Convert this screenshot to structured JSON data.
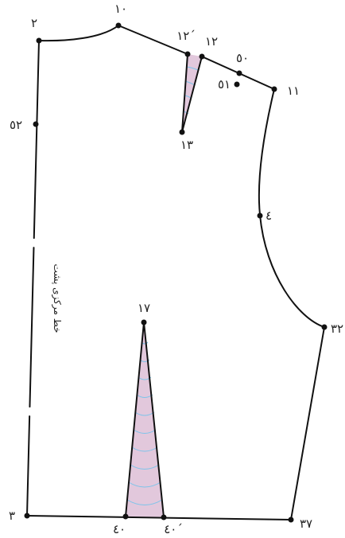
{
  "diagram": {
    "points": {
      "p2": "٢",
      "p10": "١٠",
      "p12p": "١٢´",
      "p12": "١٢",
      "p50": "٥٠",
      "p51": "٥١",
      "p11": "١١",
      "p52": "٥٢",
      "p13": "١٣",
      "p4": "٤",
      "p17": "١٧",
      "p32": "٣٢",
      "p3": "٣",
      "p40": "٤٠",
      "p40p": "٤٠´",
      "p37": "٣٧"
    },
    "center_back_label": "خط مرکزی پشت",
    "colors": {
      "outline": "#111111",
      "dart_fill": "#e2c8dc",
      "dart_lines": "#7cc4ea"
    }
  }
}
